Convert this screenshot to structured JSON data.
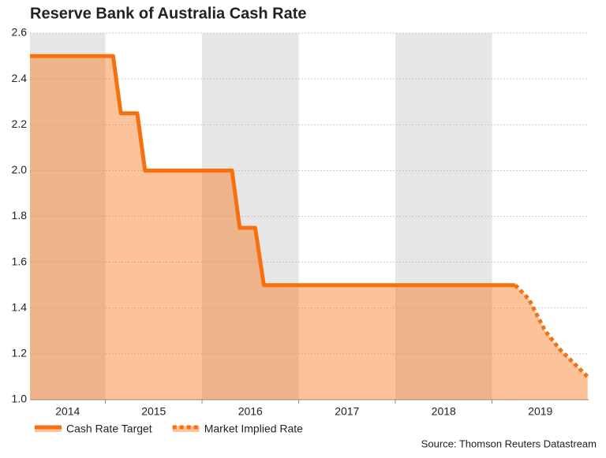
{
  "chart_data": {
    "type": "line",
    "title": "Reserve Bank of Australia Cash Rate",
    "source": "Source: Thomson Reuters Datastream",
    "categories": [
      "2014",
      "2015",
      "2016",
      "2017",
      "2018",
      "2019"
    ],
    "xlim": [
      2014.22,
      2020.0
    ],
    "ylim": [
      1.0,
      2.6
    ],
    "yticks": [
      {
        "value": 1.0,
        "label": "1.0"
      },
      1.2,
      1.4,
      1.6,
      1.8,
      {
        "value": 2.0,
        "label": "2.0"
      },
      2.2,
      2.4,
      2.6
    ],
    "grid": true,
    "series": [
      {
        "name": "Cash Rate Target",
        "color": "#f7700f",
        "style": "solid",
        "x": [
          2014.22,
          2015.08,
          2015.16,
          2015.33,
          2015.41,
          2016.31,
          2016.39,
          2016.55,
          2016.64,
          2019.24
        ],
        "values": [
          2.5,
          2.5,
          2.25,
          2.25,
          2.0,
          2.0,
          1.75,
          1.75,
          1.5,
          1.5
        ]
      },
      {
        "name": "Market Implied Rate",
        "color": "#f7700f",
        "style": "dotted",
        "x": [
          2019.24,
          2019.38,
          2019.55,
          2019.7,
          2019.99
        ],
        "values": [
          1.5,
          1.44,
          1.3,
          1.22,
          1.1
        ]
      }
    ]
  }
}
